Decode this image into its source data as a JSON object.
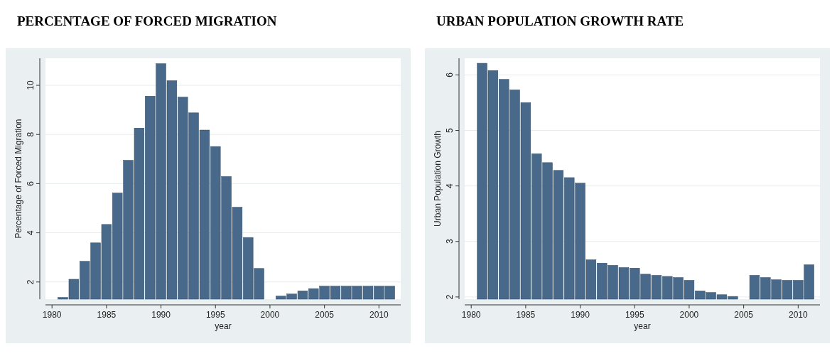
{
  "chart_data": [
    {
      "type": "bar",
      "title": "PERCENTAGE OF FORCED MIGRATION",
      "xlabel": "year",
      "ylabel": "Percentage of Forced Migration",
      "color": "#48698a",
      "x": [
        1981,
        1982,
        1983,
        1984,
        1985,
        1986,
        1987,
        1988,
        1989,
        1990,
        1991,
        1992,
        1993,
        1994,
        1995,
        1996,
        1997,
        1998,
        1999,
        2001,
        2002,
        2003,
        2004,
        2005,
        2006,
        2007,
        2008,
        2009,
        2010,
        2011
      ],
      "values": [
        1.37,
        2.11,
        2.84,
        3.59,
        4.34,
        5.62,
        6.95,
        8.26,
        9.56,
        10.88,
        10.19,
        9.52,
        8.88,
        8.18,
        7.51,
        6.29,
        5.04,
        3.81,
        2.55,
        1.43,
        1.51,
        1.64,
        1.73,
        1.83,
        1.83,
        1.83,
        1.83,
        1.83,
        1.83,
        1.83
      ],
      "xlim": [
        1979.4,
        2012
      ],
      "xticks": [
        1980,
        1985,
        1990,
        1995,
        2000,
        2005,
        2010
      ],
      "ylim": [
        1.3,
        11.1
      ],
      "yticks": [
        2,
        4,
        6,
        8,
        10
      ],
      "grid": "y"
    },
    {
      "type": "bar",
      "title": "URBAN POPULATION GROWTH RATE",
      "xlabel": "year",
      "ylabel": "Urban Population Growth",
      "color": "#48698a",
      "x": [
        1981,
        1982,
        1983,
        1984,
        1985,
        1986,
        1987,
        1988,
        1989,
        1990,
        1991,
        1992,
        1993,
        1994,
        1995,
        1996,
        1997,
        1998,
        1999,
        2000,
        2001,
        2002,
        2003,
        2004,
        2006,
        2007,
        2008,
        2009,
        2010,
        2011
      ],
      "values": [
        6.21,
        6.08,
        5.92,
        5.73,
        5.5,
        4.58,
        4.42,
        4.28,
        4.15,
        4.05,
        2.67,
        2.61,
        2.57,
        2.53,
        2.52,
        2.41,
        2.39,
        2.37,
        2.35,
        2.3,
        2.11,
        2.08,
        2.04,
        2.01,
        2.39,
        2.35,
        2.31,
        2.3,
        2.3,
        2.58
      ],
      "xlim": [
        1979.4,
        2012
      ],
      "xticks": [
        1980,
        1985,
        1990,
        1995,
        2000,
        2005,
        2010
      ],
      "ylim": [
        1.96,
        6.3
      ],
      "yticks": [
        2,
        3,
        4,
        5,
        6
      ],
      "grid": "y"
    }
  ]
}
